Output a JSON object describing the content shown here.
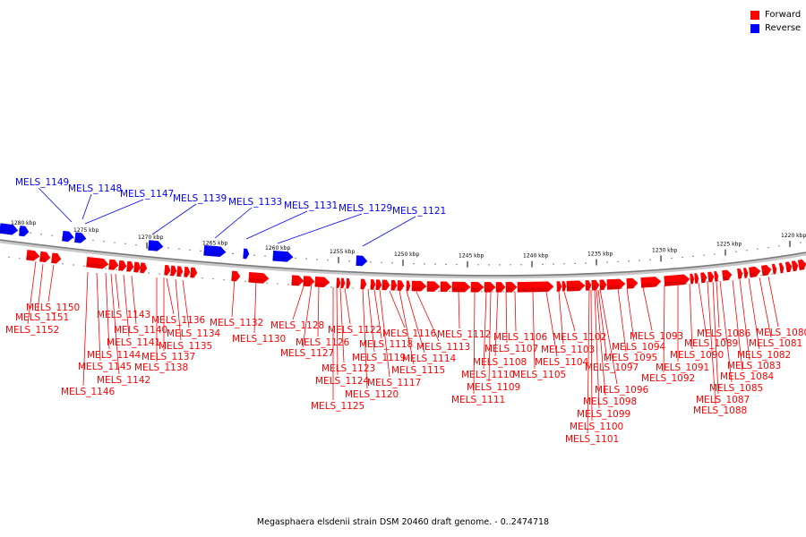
{
  "legend": {
    "forward_label": "Forward",
    "reverse_label": "Reverse",
    "forward_color": "#ff0000",
    "reverse_color": "#0000ff"
  },
  "caption": "Megasphaera elsdenii strain DSM 20460 draft genome. - 0..2474718",
  "ticks": [
    "1280 kbp",
    "1275 kbp",
    "1270 kbp",
    "1265 kbp",
    "1260 kbp",
    "1255 kbp",
    "1250 kbp",
    "1245 kbp",
    "1240 kbp",
    "1235 kbp",
    "1230 kbp",
    "1225 kbp",
    "1220 kbp"
  ],
  "reverse_genes": [
    "MELS_1149",
    "MELS_1148",
    "MELS_1147",
    "MELS_1139",
    "MELS_1133",
    "MELS_1131",
    "MELS_1129",
    "MELS_1121"
  ],
  "forward_genes": [
    "MELS_1152",
    "MELS_1151",
    "MELS_1150",
    "MELS_1146",
    "MELS_1145",
    "MELS_1144",
    "MELS_1143",
    "MELS_1142",
    "MELS_1141",
    "MELS_1140",
    "MELS_1138",
    "MELS_1137",
    "MELS_1136",
    "MELS_1135",
    "MELS_1134",
    "MELS_1132",
    "MELS_1130",
    "MELS_1128",
    "MELS_1127",
    "MELS_1126",
    "MELS_1125",
    "MELS_1124",
    "MELS_1123",
    "MELS_1122",
    "MELS_1120",
    "MELS_1119",
    "MELS_1118",
    "MELS_1117",
    "MELS_1116",
    "MELS_1115",
    "MELS_1114",
    "MELS_1113",
    "MELS_1112",
    "MELS_1111",
    "MELS_1110",
    "MELS_1109",
    "MELS_1108",
    "MELS_1107",
    "MELS_1106",
    "MELS_1105",
    "MELS_1104",
    "MELS_1103",
    "MELS_1102",
    "MELS_1101",
    "MELS_1100",
    "MELS_1099",
    "MELS_1098",
    "MELS_1097",
    "MELS_1096",
    "MELS_1095",
    "MELS_1094",
    "MELS_1093",
    "MELS_1092",
    "MELS_1091",
    "MELS_1090",
    "MELS_1089",
    "MELS_1088",
    "MELS_1087",
    "MELS_1086",
    "MELS_1085",
    "MELS_1084",
    "MELS_1083",
    "MELS_1082",
    "MELS_1081",
    "MELS_1080"
  ]
}
